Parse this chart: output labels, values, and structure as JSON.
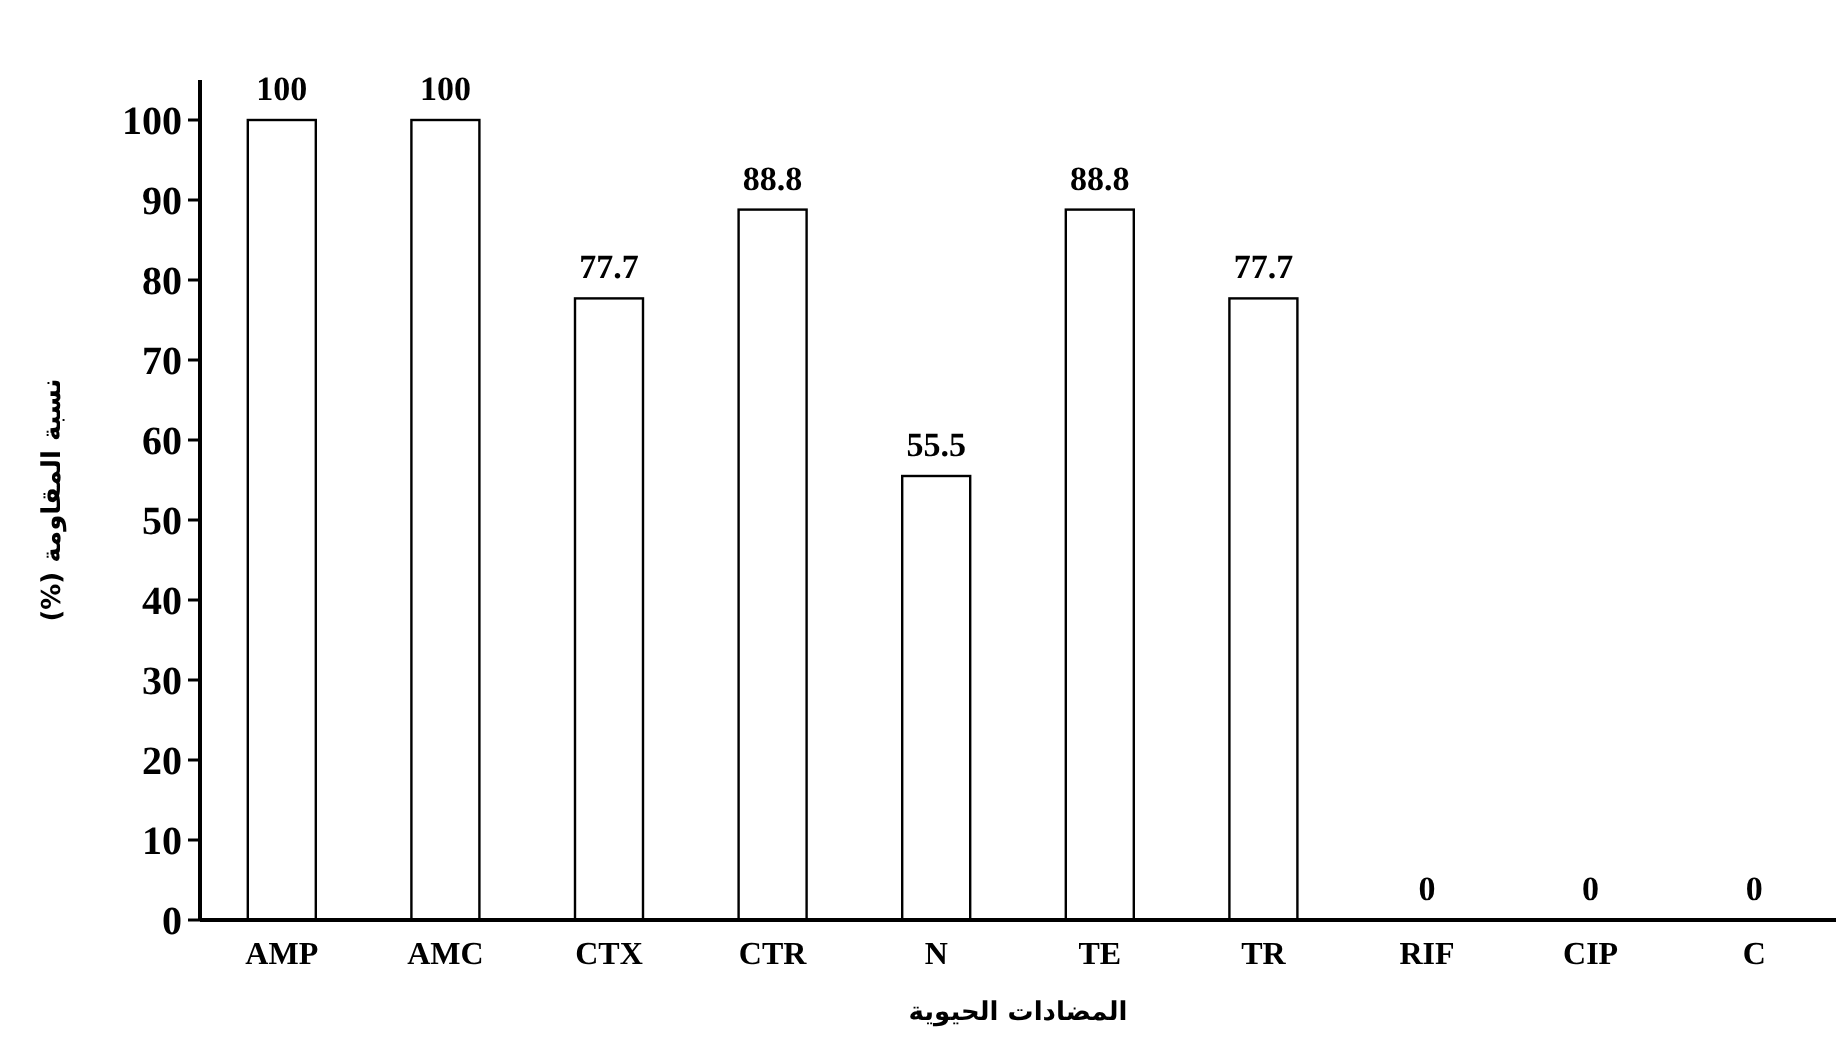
{
  "chart_data": {
    "type": "bar",
    "xlabel": "المضادات الحيوية",
    "ylabel": "نسبة المقاومة (%)",
    "categories": [
      "AMP",
      "AMC",
      "CTX",
      "CTR",
      "N",
      "TE",
      "TR",
      "RIF",
      "CIP",
      "C"
    ],
    "values": [
      100,
      100,
      77.7,
      88.8,
      55.5,
      88.8,
      77.7,
      0,
      0,
      0
    ],
    "color": "#ffffff",
    "data_labels": true,
    "grid": false,
    "ylim": [
      0,
      105
    ],
    "yticks": [
      0,
      10,
      20,
      30,
      40,
      50,
      60,
      70,
      80,
      90,
      100
    ]
  }
}
